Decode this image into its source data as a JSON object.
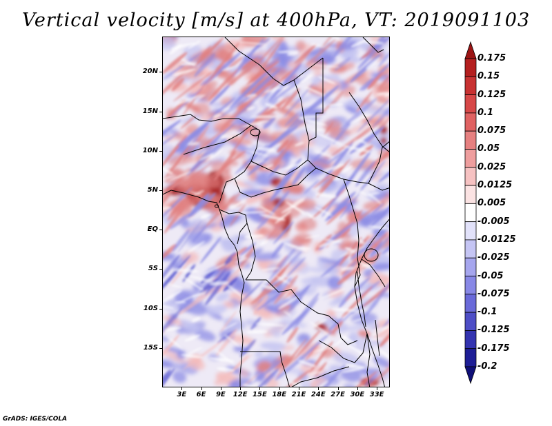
{
  "title": "Vertical velocity [m/s] at 400hPa, VT: 2019091103",
  "credit": "GrADS: IGES/COLA",
  "lat_labels": [
    "20N",
    "15N",
    "10N",
    "5N",
    "EQ",
    "5S",
    "10S",
    "15S"
  ],
  "lat_values": [
    20,
    15,
    10,
    5,
    0,
    -5,
    -10,
    -15
  ],
  "lon_labels": [
    "3E",
    "6E",
    "9E",
    "12E",
    "15E",
    "18E",
    "21E",
    "24E",
    "27E",
    "30E",
    "33E"
  ],
  "lon_values": [
    3,
    6,
    9,
    12,
    15,
    18,
    21,
    24,
    27,
    30,
    33
  ],
  "lat_range": [
    -20,
    24.5
  ],
  "lon_range": [
    0,
    35
  ],
  "colorbar": {
    "levels": [
      "0.175",
      "0.15",
      "0.125",
      "0.1",
      "0.075",
      "0.05",
      "0.025",
      "0.0125",
      "0.005",
      "-0.005",
      "-0.0125",
      "-0.025",
      "-0.05",
      "-0.075",
      "-0.1",
      "-0.125",
      "-0.175",
      "-0.2"
    ],
    "colors": [
      "#9b1414",
      "#b41f1f",
      "#c83232",
      "#d74848",
      "#e06262",
      "#e68080",
      "#ee9e9e",
      "#f6c2c2",
      "#fbe3e3",
      "#ffffff",
      "#e2e2fa",
      "#c5c5f4",
      "#a6a6ee",
      "#8888e6",
      "#6a6ad9",
      "#4e4ec6",
      "#3333b0",
      "#1e1e96",
      "#0f0f78"
    ]
  },
  "field_colors": {
    "background": "#eeeaf6",
    "strong_ascent": "#a81c1c",
    "moderate_ascent": "#e08080",
    "weak_ascent": "#f4bcbc",
    "weak_descent": "#c2c2f0",
    "moderate_descent": "#8c8ce4",
    "strong_descent": "#5a5ad0",
    "border": "#000000"
  }
}
